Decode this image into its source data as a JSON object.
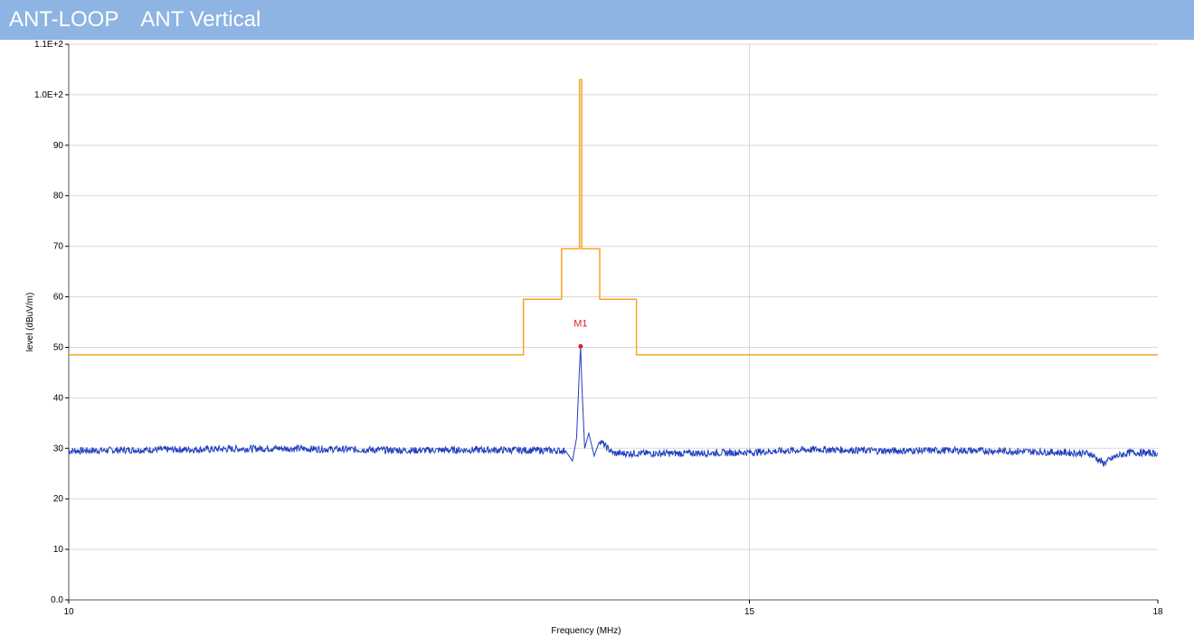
{
  "header": {
    "title_left": "ANT-LOOP",
    "title_right": "ANT Vertical"
  },
  "colors": {
    "title_bar": "#8db4e2",
    "limit_line": "#f5a623",
    "trace": "#1f3fbf",
    "marker": "#e02020",
    "grid": "#d9d9d9"
  },
  "chart_data": {
    "type": "line",
    "xlabel": "Frequency (MHz)",
    "ylabel": "level (dBuV/m)",
    "xlim": [
      10,
      18
    ],
    "ylim": [
      0,
      110
    ],
    "x_ticks": [
      10,
      15,
      18
    ],
    "x_tick_labels": [
      "10",
      "15",
      "18"
    ],
    "y_ticks": [
      0,
      10,
      20,
      30,
      40,
      50,
      60,
      70,
      80,
      90,
      100,
      110
    ],
    "y_tick_labels": [
      "0.0",
      "10",
      "20",
      "30",
      "40",
      "50",
      "60",
      "70",
      "80",
      "90",
      "1.0E+2",
      "1.1E+2"
    ],
    "grid": true,
    "series": [
      {
        "role": "limit",
        "x": [
          10,
          13.34,
          13.34,
          13.62,
          13.62,
          13.752,
          13.752,
          13.768,
          13.768,
          13.9,
          13.9,
          14.17,
          14.17,
          18
        ],
        "values": [
          48.5,
          48.5,
          59.5,
          59.5,
          69.5,
          69.5,
          103,
          103,
          69.5,
          69.5,
          59.5,
          59.5,
          48.5,
          48.5
        ]
      },
      {
        "role": "measurement",
        "x": [
          10,
          10.5,
          11,
          11.5,
          12,
          12.5,
          13,
          13.5,
          13.65,
          13.7,
          13.73,
          13.75,
          13.76,
          13.77,
          13.79,
          13.82,
          13.86,
          13.9,
          14.0,
          14.5,
          15,
          15.5,
          16,
          16.5,
          17,
          17.5,
          17.6,
          17.7,
          17.8,
          18
        ],
        "values": [
          29.5,
          29.7,
          29.8,
          30.0,
          29.8,
          29.6,
          29.7,
          29.6,
          29.5,
          27.5,
          32,
          45,
          50,
          42,
          30,
          33,
          28.5,
          31.5,
          29,
          29,
          29.2,
          29.8,
          29.5,
          29.6,
          29.4,
          29,
          27,
          28.5,
          29.2,
          29
        ]
      }
    ],
    "markers": [
      {
        "label": "M1",
        "x": 13.76,
        "y": 50.2
      }
    ]
  }
}
